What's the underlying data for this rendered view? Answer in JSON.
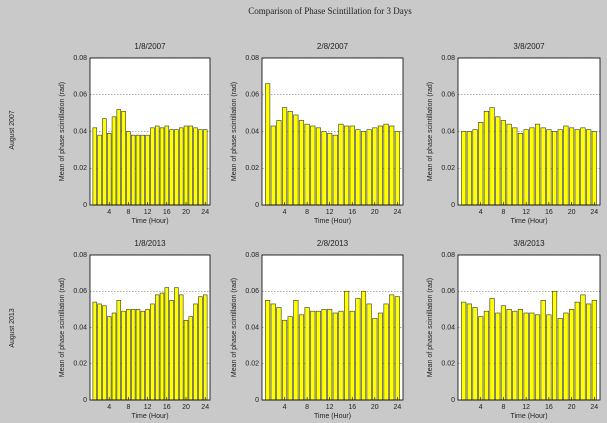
{
  "title": "Comparison of Phase Scintillation for 3 Days",
  "row_labels": [
    "August 2007",
    "August 2013"
  ],
  "chart_data": [
    {
      "type": "bar",
      "title": "1/8/2007",
      "xlabel": "Time (Hour)",
      "ylabel": "Mean of phase scintillation (rad)",
      "color": "#ffff00",
      "grid": true,
      "x": [
        1,
        2,
        3,
        4,
        5,
        6,
        7,
        8,
        9,
        10,
        11,
        12,
        13,
        14,
        15,
        16,
        17,
        18,
        19,
        20,
        21,
        22,
        23,
        24
      ],
      "values": [
        0.042,
        0.038,
        0.047,
        0.039,
        0.048,
        0.052,
        0.051,
        0.04,
        0.038,
        0.038,
        0.038,
        0.038,
        0.042,
        0.043,
        0.042,
        0.043,
        0.041,
        0.041,
        0.042,
        0.043,
        0.043,
        0.042,
        0.041,
        0.041
      ],
      "xlim": [
        0,
        25
      ],
      "xticks": [
        4,
        8,
        12,
        16,
        20,
        24
      ],
      "ylim": [
        0,
        0.08
      ],
      "yticks": [
        0,
        0.02,
        0.04,
        0.06,
        0.08
      ]
    },
    {
      "type": "bar",
      "title": "2/8/2007",
      "xlabel": "Time (Hour)",
      "ylabel": "Mean of phase scintillation (rad)",
      "color": "#ffff00",
      "grid": true,
      "x": [
        1,
        2,
        3,
        4,
        5,
        6,
        7,
        8,
        9,
        10,
        11,
        12,
        13,
        14,
        15,
        16,
        17,
        18,
        19,
        20,
        21,
        22,
        23,
        24
      ],
      "values": [
        0.066,
        0.043,
        0.046,
        0.053,
        0.051,
        0.049,
        0.046,
        0.044,
        0.043,
        0.042,
        0.04,
        0.039,
        0.038,
        0.044,
        0.043,
        0.043,
        0.041,
        0.04,
        0.041,
        0.042,
        0.043,
        0.044,
        0.043,
        0.04
      ],
      "xlim": [
        0,
        25
      ],
      "xticks": [
        4,
        8,
        12,
        16,
        20,
        24
      ],
      "ylim": [
        0,
        0.08
      ],
      "yticks": [
        0,
        0.02,
        0.04,
        0.06,
        0.08
      ]
    },
    {
      "type": "bar",
      "title": "3/8/2007",
      "xlabel": "Time (Hour)",
      "ylabel": "Mean of phase scintillation (rad)",
      "color": "#ffff00",
      "grid": true,
      "x": [
        1,
        2,
        3,
        4,
        5,
        6,
        7,
        8,
        9,
        10,
        11,
        12,
        13,
        14,
        15,
        16,
        17,
        18,
        19,
        20,
        21,
        22,
        23,
        24
      ],
      "values": [
        0.04,
        0.04,
        0.041,
        0.045,
        0.051,
        0.053,
        0.048,
        0.046,
        0.044,
        0.042,
        0.039,
        0.041,
        0.042,
        0.044,
        0.042,
        0.041,
        0.04,
        0.041,
        0.043,
        0.042,
        0.041,
        0.042,
        0.041,
        0.04
      ],
      "xlim": [
        0,
        25
      ],
      "xticks": [
        4,
        8,
        12,
        16,
        20,
        24
      ],
      "ylim": [
        0,
        0.08
      ],
      "yticks": [
        0,
        0.02,
        0.04,
        0.06,
        0.08
      ]
    },
    {
      "type": "bar",
      "title": "1/8/2013",
      "xlabel": "Time (Hour)",
      "ylabel": "Mean of phase scintillation (rad)",
      "color": "#ffff00",
      "grid": true,
      "x": [
        1,
        2,
        3,
        4,
        5,
        6,
        7,
        8,
        9,
        10,
        11,
        12,
        13,
        14,
        15,
        16,
        17,
        18,
        19,
        20,
        21,
        22,
        23,
        24
      ],
      "values": [
        0.054,
        0.053,
        0.052,
        0.046,
        0.048,
        0.055,
        0.049,
        0.05,
        0.05,
        0.05,
        0.049,
        0.05,
        0.053,
        0.058,
        0.059,
        0.062,
        0.055,
        0.062,
        0.058,
        0.044,
        0.046,
        0.053,
        0.057,
        0.058
      ],
      "xlim": [
        0,
        25
      ],
      "xticks": [
        4,
        8,
        12,
        16,
        20,
        24
      ],
      "ylim": [
        0,
        0.08
      ],
      "yticks": [
        0,
        0.02,
        0.04,
        0.06,
        0.08
      ]
    },
    {
      "type": "bar",
      "title": "2/8/2013",
      "xlabel": "Time (Hour)",
      "ylabel": "Mean of phase scintillation (rad)",
      "color": "#ffff00",
      "grid": true,
      "x": [
        1,
        2,
        3,
        4,
        5,
        6,
        7,
        8,
        9,
        10,
        11,
        12,
        13,
        14,
        15,
        16,
        17,
        18,
        19,
        20,
        21,
        22,
        23,
        24
      ],
      "values": [
        0.055,
        0.053,
        0.051,
        0.044,
        0.046,
        0.055,
        0.047,
        0.051,
        0.049,
        0.049,
        0.05,
        0.05,
        0.048,
        0.049,
        0.06,
        0.049,
        0.056,
        0.06,
        0.053,
        0.045,
        0.048,
        0.053,
        0.058,
        0.057
      ],
      "xlim": [
        0,
        25
      ],
      "xticks": [
        4,
        8,
        12,
        16,
        20,
        24
      ],
      "ylim": [
        0,
        0.08
      ],
      "yticks": [
        0,
        0.02,
        0.04,
        0.06,
        0.08
      ]
    },
    {
      "type": "bar",
      "title": "3/8/2013",
      "xlabel": "Time (Hour)",
      "ylabel": "Mean of phase scintillation (rad)",
      "color": "#ffff00",
      "grid": true,
      "x": [
        1,
        2,
        3,
        4,
        5,
        6,
        7,
        8,
        9,
        10,
        11,
        12,
        13,
        14,
        15,
        16,
        17,
        18,
        19,
        20,
        21,
        22,
        23,
        24
      ],
      "values": [
        0.054,
        0.053,
        0.051,
        0.046,
        0.049,
        0.056,
        0.048,
        0.052,
        0.05,
        0.049,
        0.05,
        0.048,
        0.048,
        0.047,
        0.055,
        0.047,
        0.06,
        0.045,
        0.048,
        0.05,
        0.054,
        0.058,
        0.053,
        0.055
      ],
      "xlim": [
        0,
        25
      ],
      "xticks": [
        4,
        8,
        12,
        16,
        20,
        24
      ],
      "ylim": [
        0,
        0.08
      ],
      "yticks": [
        0,
        0.02,
        0.04,
        0.06,
        0.08
      ]
    }
  ]
}
